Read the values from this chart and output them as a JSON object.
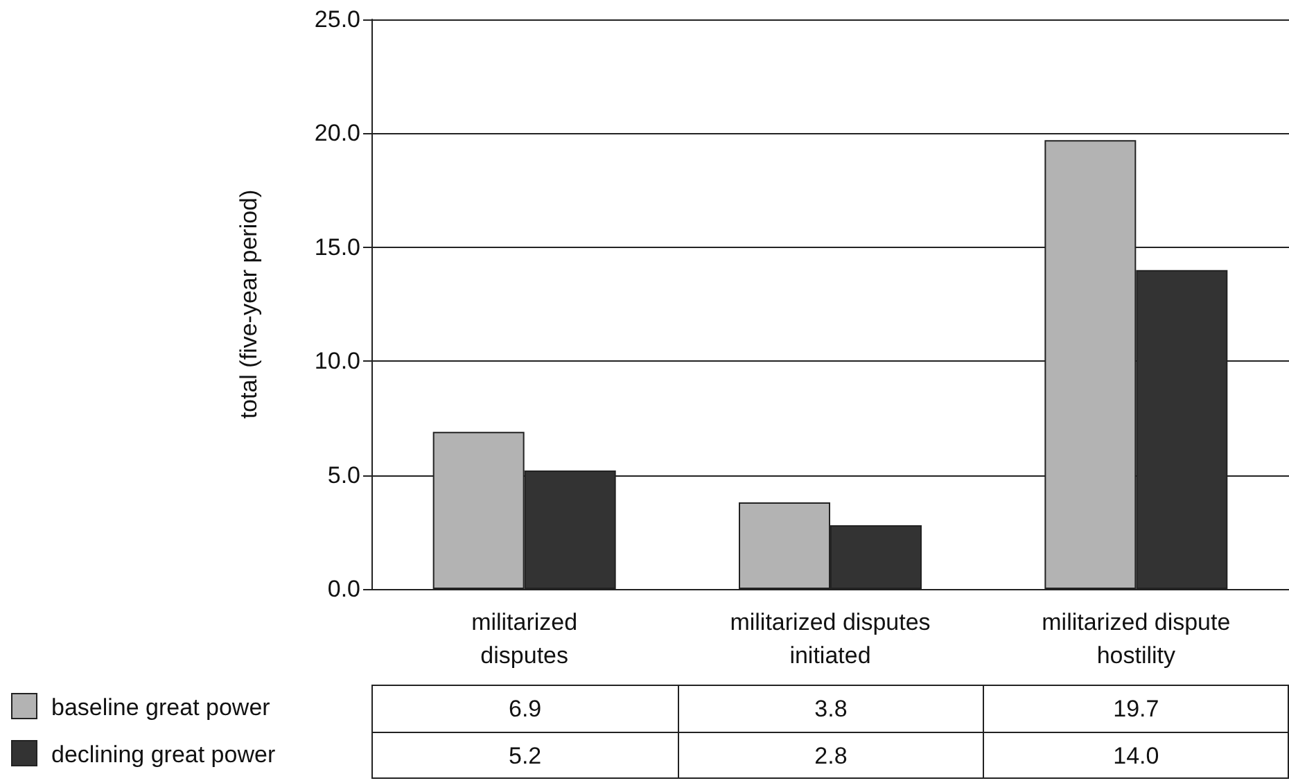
{
  "chart_data": {
    "type": "bar",
    "ylabel": "total (five-year period)",
    "categories": [
      "militarized disputes",
      "militarized disputes initiated",
      "militarized dispute hostility"
    ],
    "series": [
      {
        "name": "baseline great power",
        "color": "#b3b3b3",
        "values": [
          6.9,
          3.8,
          19.7
        ],
        "value_labels": [
          "6.9",
          "3.8",
          "19.7"
        ]
      },
      {
        "name": "declining great power",
        "color": "#333333",
        "values": [
          5.2,
          2.8,
          14.0
        ],
        "value_labels": [
          "5.2",
          "2.8",
          "14.0"
        ]
      }
    ],
    "ylim": [
      0,
      25
    ],
    "yticks": [
      {
        "value": 0,
        "label": "0.0"
      },
      {
        "value": 5,
        "label": "5.0"
      },
      {
        "value": 10,
        "label": "10.0"
      },
      {
        "value": 15,
        "label": "15.0"
      },
      {
        "value": 20,
        "label": "20.0"
      },
      {
        "value": 25,
        "label": "25.0"
      }
    ],
    "grid": "y",
    "legend": "bottom left"
  }
}
